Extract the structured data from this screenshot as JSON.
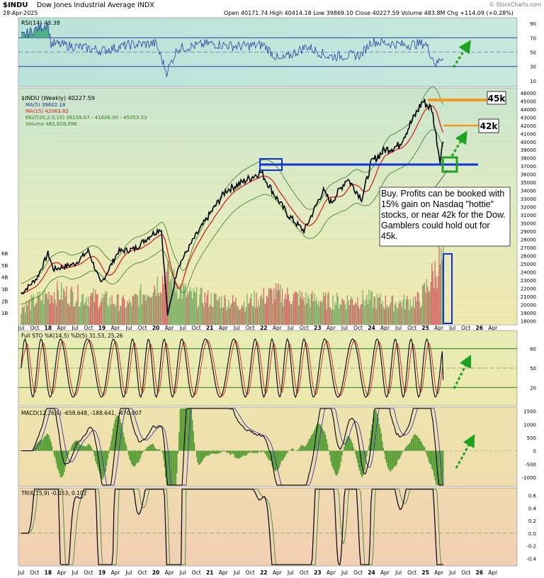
{
  "header": {
    "symbol": "$INDU",
    "name": "Dow Jones Industrial Average INDX",
    "date": "28-Apr-2025",
    "ohlc": "Open 40171.74  High 40414.18  Low 39869.10  Close 40227.59  Volume 483.8M  Chg +114.09 (+0.28%)",
    "watermark": "© StockCharts.com"
  },
  "colors": {
    "price": "#000000",
    "ma5": "#1a2a8c",
    "ma15": "#d01818",
    "kelt": "#2f7d1f",
    "vol_up": "#7fb069",
    "vol_down": "#d46a6a",
    "rsi": "#2b3ea8",
    "sto_k": "#000000",
    "sto_d": "#cc2020",
    "macd": "#000000",
    "macd_sig": "#3b35b8",
    "hist": "#4e9a2e",
    "trix": "#000000",
    "trix_sig": "#3d8a3d",
    "annot": "#1030e0",
    "green": "#1fa21f",
    "orange": "#f59a1a"
  },
  "chart_data": [
    {
      "type": "line",
      "title": "RSI(14) 43.38",
      "yticks": [
        90,
        70,
        50,
        30,
        10
      ],
      "levels": [
        70,
        50,
        30
      ],
      "x": [
        2017.5,
        2018.0,
        2018.05,
        2018.5,
        2019.0,
        2019.5,
        2020.0,
        2020.2,
        2020.4,
        2021.0,
        2021.5,
        2022.0,
        2022.3,
        2022.8,
        2023.2,
        2023.8,
        2024.0,
        2024.6,
        2025.0,
        2025.2,
        2025.3
      ],
      "values": [
        72,
        90,
        62,
        58,
        52,
        60,
        62,
        22,
        55,
        62,
        58,
        60,
        38,
        58,
        44,
        46,
        65,
        60,
        62,
        32,
        43
      ]
    },
    {
      "type": "line",
      "title": "$INDU (Weekly) 40227.59",
      "legend": [
        "MA(5) 39602.18",
        "MA(15) 42063.82",
        "KELT(20,2.0,10) 38158.67 - 41606.00 - 45053.33",
        "Volume 483,828,096"
      ],
      "yticks": [
        46000,
        45000,
        44000,
        43000,
        42000,
        41000,
        40000,
        39000,
        38000,
        37000,
        36000,
        35000,
        34000,
        33000,
        32000,
        31000,
        30000,
        29000,
        28000,
        27000,
        26000,
        25000,
        24000,
        23000,
        22000,
        21000,
        20000,
        19000,
        18000
      ],
      "vol_ticks": [
        "6B",
        "5B",
        "4B",
        "3B",
        "2B",
        "1B"
      ],
      "x_ticks": [
        "Jul",
        "Oct",
        "18",
        "Apr",
        "Jul",
        "Oct",
        "19",
        "Apr",
        "Jul",
        "Oct",
        "20",
        "Apr",
        "Jul",
        "Oct",
        "21",
        "Apr",
        "Jul",
        "Oct",
        "22",
        "Apr",
        "Jul",
        "Oct",
        "23",
        "Apr",
        "Jul",
        "Oct",
        "24",
        "Apr",
        "Jul",
        "Oct",
        "25",
        "Apr",
        "Jul",
        "Oct",
        "26",
        "Apr"
      ],
      "price_x": [
        2017.5,
        2017.8,
        2018.0,
        2018.1,
        2018.5,
        2018.75,
        2018.98,
        2019.3,
        2019.6,
        2019.9,
        2020.1,
        2020.22,
        2020.4,
        2020.7,
        2020.95,
        2021.3,
        2021.6,
        2021.95,
        2022.2,
        2022.45,
        2022.75,
        2023.1,
        2023.25,
        2023.55,
        2023.82,
        2024.0,
        2024.25,
        2024.5,
        2024.75,
        2024.95,
        2025.12,
        2025.27,
        2025.33
      ],
      "price_y": [
        21300,
        23300,
        26300,
        24300,
        25000,
        26600,
        22500,
        26500,
        26800,
        28500,
        29400,
        18600,
        24500,
        28000,
        30600,
        34000,
        35000,
        36300,
        33500,
        31000,
        29000,
        34000,
        32500,
        35500,
        33000,
        37500,
        39000,
        39500,
        42500,
        45000,
        44000,
        37700,
        40200
      ],
      "vol_x": [
        2017.5,
        2018.1,
        2018.9,
        2019.5,
        2020.2,
        2020.6,
        2021.0,
        2021.6,
        2022.2,
        2022.8,
        2023.3,
        2023.9,
        2024.4,
        2024.9,
        2025.25
      ],
      "vol_b": [
        1.6,
        3.0,
        2.5,
        1.9,
        4.6,
        2.7,
        2.4,
        2.0,
        2.9,
        2.4,
        2.2,
        2.4,
        2.0,
        2.3,
        5.7
      ],
      "annotations": {
        "level_45k": "45k",
        "level_42k": "42k",
        "note": "Buy.  Profits can be booked with 15% gain on Nasdaq \"hottie\" stocks, or near 42k for the Dow.  Gamblers could hold out for 45k."
      }
    },
    {
      "type": "line",
      "title": "Full STO %K(14,5) %D(5) 31.53, 25.26",
      "yticks": [
        80,
        50,
        20
      ],
      "levels": [
        80,
        50,
        20
      ]
    },
    {
      "type": "line",
      "title": "MACD(12,26,9) -658.648, -188.641, -470.007",
      "yticks": [
        1500,
        1000,
        500,
        0,
        -500,
        -1000
      ]
    },
    {
      "type": "line",
      "title": "TRIX(15,9) -0.053, 0.102",
      "yticks": [
        0.6,
        0.4,
        0.2,
        0.0,
        -0.2,
        -0.4
      ]
    }
  ]
}
